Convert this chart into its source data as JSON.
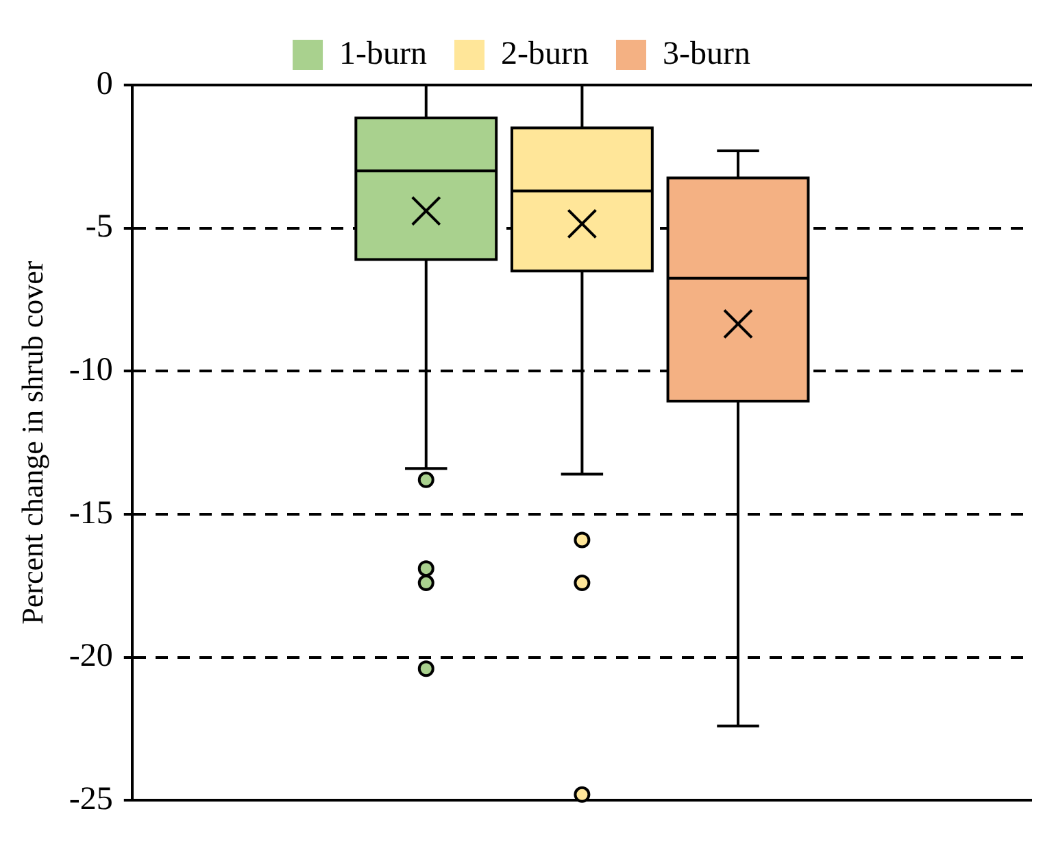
{
  "chart_data": {
    "type": "box",
    "ylabel": "Percent change in shrub cover",
    "categories": [
      null
    ],
    "series": [
      {
        "name": "1-burn",
        "color": "#a9d18e",
        "boxes": [
          {
            "low": -13.4,
            "q1": -6.1,
            "median": -3.0,
            "q3": -1.15,
            "high": 0,
            "mean": -4.4,
            "outliers": [
              -13.8,
              -16.9,
              -17.4,
              -20.4
            ]
          }
        ]
      },
      {
        "name": "2-burn",
        "color": "#ffe699",
        "boxes": [
          {
            "low": -13.6,
            "q1": -6.5,
            "median": -3.7,
            "q3": -1.5,
            "high": 0,
            "mean": -4.85,
            "outliers": [
              -15.9,
              -17.4,
              -24.8
            ]
          }
        ]
      },
      {
        "name": "3-burn",
        "color": "#f4b183",
        "boxes": [
          {
            "low": -22.4,
            "q1": -11.05,
            "median": -6.75,
            "q3": -3.25,
            "high": -2.3,
            "mean": -8.35
          }
        ]
      }
    ],
    "ylim": [
      -25,
      0
    ],
    "yticks": [
      -25,
      -20,
      -15,
      -10,
      -5,
      0
    ],
    "grid": "y",
    "legend": "top",
    "tick_labels": "y"
  }
}
